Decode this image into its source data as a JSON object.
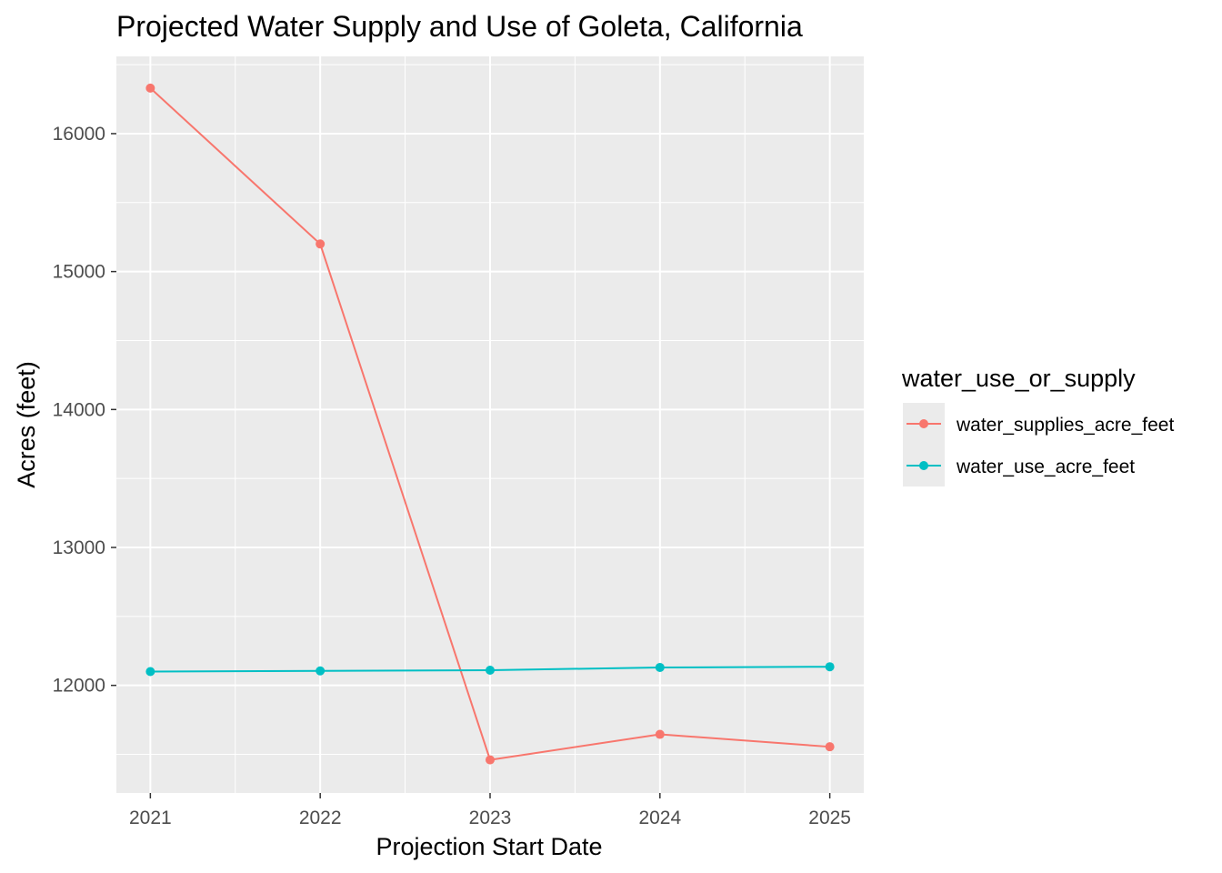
{
  "chart_data": {
    "type": "line",
    "title": "Projected Water Supply and Use of Goleta, California",
    "xlabel": "Projection Start Date",
    "ylabel": "Acres (feet)",
    "x": [
      2021,
      2022,
      2023,
      2024,
      2025
    ],
    "x_tick_labels": [
      "2021",
      "2022",
      "2023",
      "2024",
      "2025"
    ],
    "y_ticks": [
      12000,
      13000,
      14000,
      15000,
      16000
    ],
    "y_tick_labels": [
      "12000",
      "13000",
      "14000",
      "15000",
      "16000"
    ],
    "xlim": [
      2020.8,
      2025.2
    ],
    "ylim": [
      11220,
      16560
    ],
    "grid": true,
    "legend": {
      "title": "water_use_or_supply",
      "position": "right"
    },
    "series": [
      {
        "name": "water_supplies_acre_feet",
        "color": "#F8766D",
        "values": [
          16330,
          15200,
          11460,
          11645,
          11555
        ]
      },
      {
        "name": "water_use_acre_feet",
        "color": "#00BFC4",
        "values": [
          12100,
          12105,
          12110,
          12130,
          12135
        ]
      }
    ]
  }
}
